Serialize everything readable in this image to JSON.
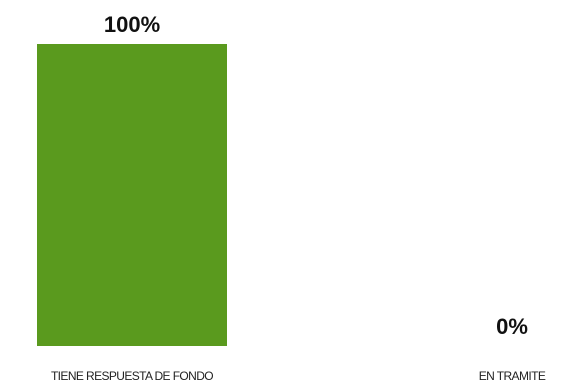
{
  "chart_data": {
    "type": "bar",
    "categories": [
      "TIENE RESPUESTA DE FONDO",
      "EN TRAMITE"
    ],
    "values": [
      100,
      0
    ],
    "value_labels": [
      "100%",
      "0%"
    ],
    "ylim": [
      0,
      100
    ],
    "grid": false,
    "bar_color": "#5a9a1e",
    "title": "",
    "xlabel": "",
    "ylabel": ""
  }
}
